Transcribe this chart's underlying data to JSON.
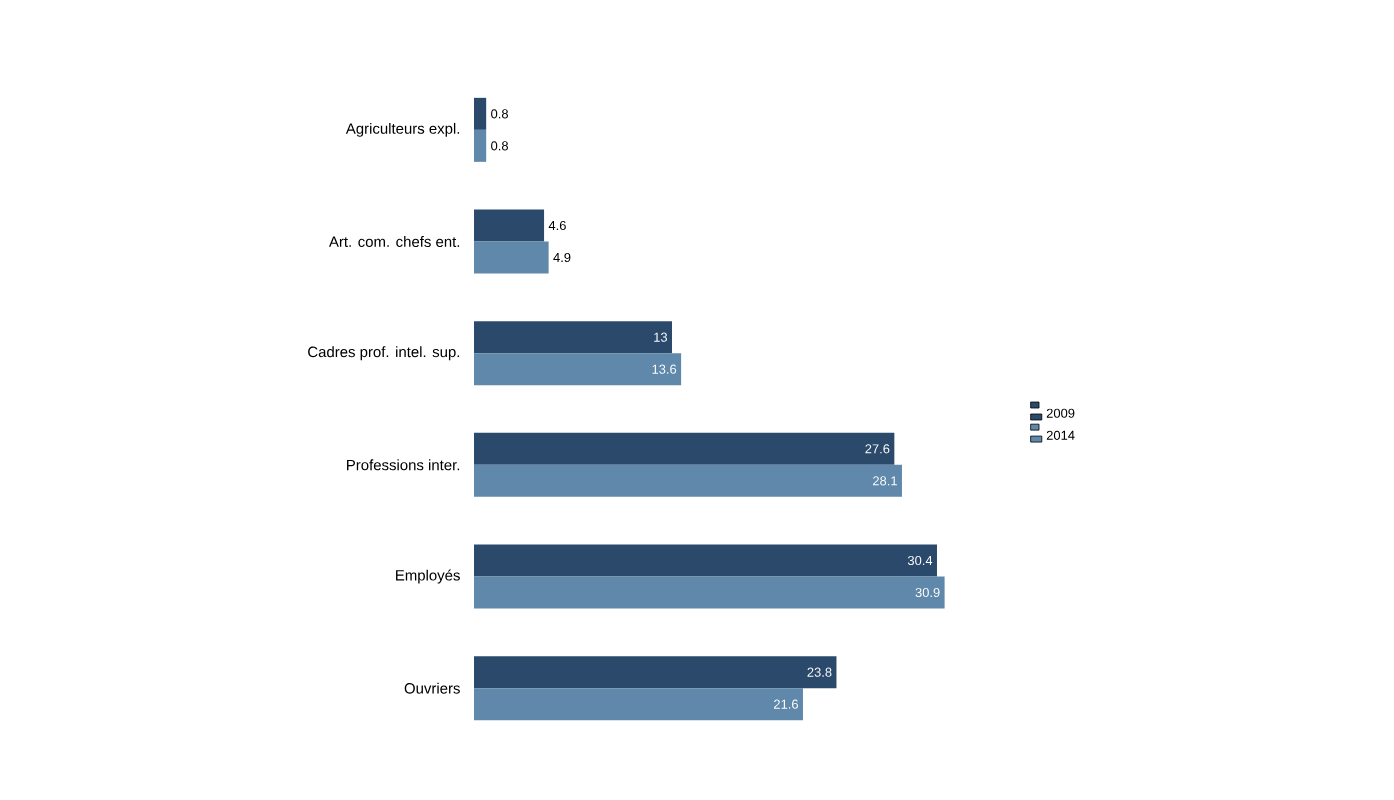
{
  "chart_data": {
    "type": "bar",
    "orientation": "horizontal",
    "categories": [
      "Agriculteurs expl.",
      "Art. com. chefs ent.",
      "Cadres prof. intel. sup.",
      "Professions inter.",
      "Employés",
      "Ouvriers"
    ],
    "series": [
      {
        "name": "2009",
        "color": "#2b4a6b",
        "values": [
          0.8,
          4.6,
          13,
          27.6,
          30.4,
          23.8
        ]
      },
      {
        "name": "2014",
        "color": "#5f88aa",
        "values": [
          0.8,
          4.9,
          13.6,
          28.1,
          30.9,
          21.6
        ]
      }
    ],
    "data_labels": true,
    "legend": "right"
  }
}
